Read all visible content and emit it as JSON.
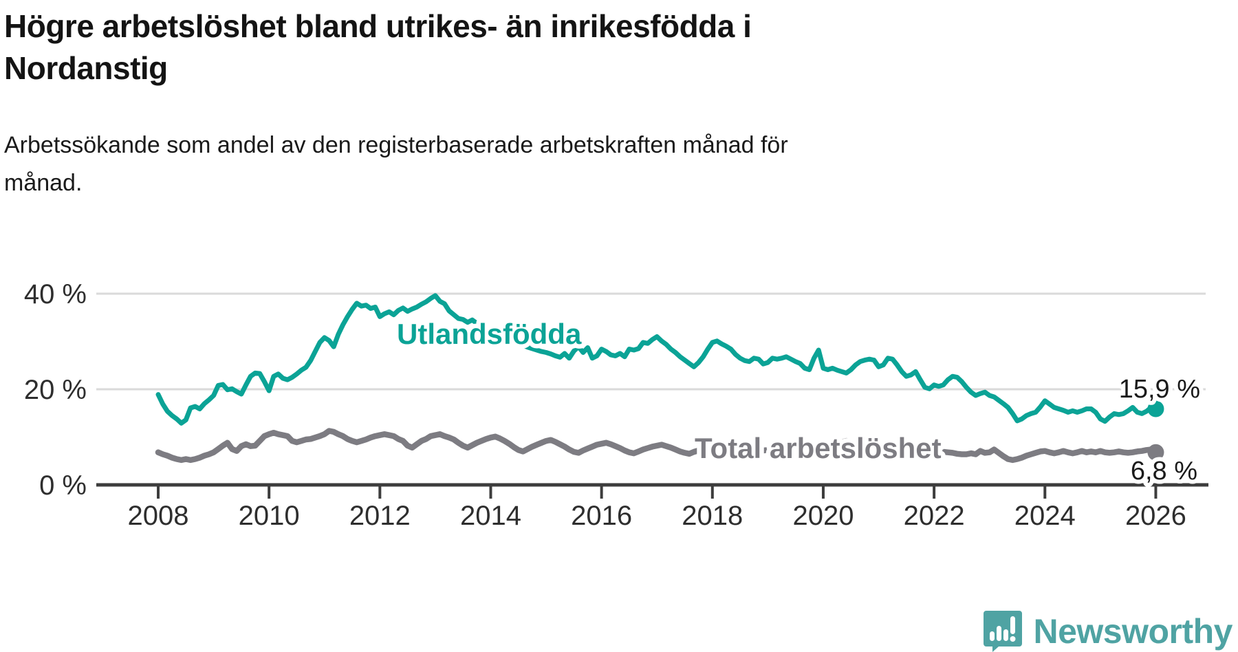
{
  "title": {
    "lines": [
      "Högre arbetslöshet bland utrikes- än inrikesfödda i",
      "Nordanstig"
    ]
  },
  "subtitle": {
    "lines": [
      "Arbetssökande som andel av den registerbaserade arbetskraften månad för",
      "månad."
    ]
  },
  "branding": {
    "name": "Newsworthy",
    "color": "#4FA3A3",
    "icon": "newsworthy-speech-bubble-chart-icon"
  },
  "chart_data": {
    "type": "line",
    "title": "Högre arbetslöshet bland utrikes- än inrikesfödda i Nordanstig",
    "subtitle": "Arbetssökande som andel av den registerbaserade arbetskraften månad för månad.",
    "x_unit": "month",
    "x_start": "2008-01",
    "x_end": "2026-01",
    "grid": "horizontal",
    "legend_position": "inline-labels",
    "x_axis": {
      "tick_years": [
        2008,
        2010,
        2012,
        2014,
        2016,
        2018,
        2020,
        2022,
        2024,
        2026
      ],
      "tick_labels": [
        "2008",
        "2010",
        "2012",
        "2014",
        "2016",
        "2018",
        "2020",
        "2022",
        "2024",
        "2026"
      ]
    },
    "y_axis": {
      "ticks": [
        0,
        20,
        40
      ],
      "tick_labels": [
        "0 %",
        "20 %",
        "40 %"
      ],
      "range": [
        0,
        43
      ]
    },
    "series": [
      {
        "name": "Utlandsfödda",
        "color": "#0BA396",
        "end_value": 15.9,
        "end_label": "15,9 %",
        "values": [
          18.9,
          16.9,
          15.4,
          14.5,
          13.8,
          12.9,
          13.6,
          16.1,
          16.4,
          15.9,
          17.0,
          17.8,
          18.7,
          20.8,
          21.0,
          19.9,
          20.1,
          19.5,
          19.0,
          20.9,
          22.7,
          23.4,
          23.3,
          21.6,
          19.7,
          22.7,
          23.2,
          22.3,
          22.0,
          22.5,
          23.2,
          24.0,
          24.6,
          26.0,
          27.9,
          29.8,
          30.8,
          30.2,
          28.9,
          31.5,
          33.5,
          35.2,
          36.7,
          38.0,
          37.4,
          37.6,
          36.9,
          37.2,
          35.2,
          35.8,
          36.2,
          35.6,
          36.5,
          37.0,
          36.3,
          36.8,
          37.2,
          37.8,
          38.3,
          39.0,
          39.6,
          38.4,
          37.9,
          36.4,
          35.6,
          34.8,
          34.6,
          34.0,
          34.5,
          33.8,
          33.2,
          32.8,
          32.4,
          32.0,
          31.5,
          31.0,
          30.5,
          30.0,
          29.6,
          29.2,
          28.8,
          28.5,
          28.2,
          27.9,
          27.7,
          27.4,
          27.0,
          26.7,
          27.5,
          26.5,
          28.0,
          28.9,
          27.7,
          28.7,
          26.5,
          27.0,
          28.4,
          27.9,
          27.2,
          27.0,
          27.5,
          26.8,
          28.4,
          28.2,
          28.5,
          29.8,
          29.6,
          30.4,
          31.0,
          30.1,
          29.4,
          28.4,
          27.7,
          26.8,
          26.1,
          25.4,
          24.7,
          25.6,
          26.8,
          28.4,
          29.8,
          30.1,
          29.5,
          29.0,
          28.4,
          27.3,
          26.5,
          26.0,
          25.8,
          26.5,
          26.3,
          25.3,
          25.6,
          26.5,
          26.3,
          26.5,
          26.8,
          26.3,
          25.8,
          25.4,
          24.4,
          24.1,
          26.5,
          28.2,
          24.4,
          24.1,
          24.4,
          24.0,
          23.7,
          23.4,
          24.1,
          25.1,
          25.8,
          26.1,
          26.3,
          26.1,
          24.7,
          25.1,
          26.5,
          26.3,
          25.1,
          23.7,
          22.7,
          23.0,
          23.7,
          22.0,
          20.4,
          20.1,
          20.9,
          20.6,
          20.9,
          22.0,
          22.7,
          22.5,
          21.6,
          20.4,
          19.4,
          18.7,
          19.1,
          19.4,
          18.7,
          18.4,
          17.7,
          17.0,
          16.2,
          14.9,
          13.4,
          13.8,
          14.5,
          14.9,
          15.2,
          16.3,
          17.6,
          16.9,
          16.2,
          15.9,
          15.6,
          15.2,
          15.5,
          15.2,
          15.5,
          15.9,
          15.9,
          15.2,
          13.8,
          13.3,
          14.2,
          14.9,
          14.7,
          14.9,
          15.5,
          16.2,
          15.2,
          14.9,
          15.4,
          16.2,
          15.9
        ]
      },
      {
        "name": "Total arbetslöshet",
        "color": "#7D7C82",
        "end_value": 6.8,
        "end_label": "6,8 %",
        "values": [
          6.8,
          6.4,
          6.1,
          5.7,
          5.4,
          5.2,
          5.4,
          5.2,
          5.4,
          5.7,
          6.1,
          6.4,
          6.8,
          7.5,
          8.2,
          8.8,
          7.5,
          7.1,
          8.1,
          8.5,
          8.1,
          8.2,
          9.2,
          10.2,
          10.6,
          10.9,
          10.6,
          10.4,
          10.2,
          9.2,
          8.9,
          9.2,
          9.5,
          9.6,
          9.9,
          10.2,
          10.6,
          11.3,
          11.1,
          10.6,
          10.2,
          9.6,
          9.2,
          8.9,
          9.2,
          9.5,
          9.9,
          10.2,
          10.4,
          10.6,
          10.4,
          10.2,
          9.6,
          9.2,
          8.2,
          7.8,
          8.5,
          9.2,
          9.6,
          10.2,
          10.4,
          10.6,
          10.2,
          9.9,
          9.5,
          8.8,
          8.2,
          7.8,
          8.3,
          8.8,
          9.2,
          9.6,
          9.9,
          10.1,
          9.7,
          9.2,
          8.6,
          7.9,
          7.3,
          7.0,
          7.5,
          8.0,
          8.4,
          8.8,
          9.2,
          9.4,
          9.0,
          8.5,
          8.0,
          7.4,
          6.9,
          6.7,
          7.2,
          7.6,
          8.0,
          8.4,
          8.6,
          8.8,
          8.5,
          8.1,
          7.7,
          7.2,
          6.8,
          6.6,
          7.0,
          7.4,
          7.7,
          8.0,
          8.2,
          8.4,
          8.1,
          7.8,
          7.4,
          7.0,
          6.7,
          6.5,
          6.9,
          7.2,
          7.5,
          7.7,
          7.8,
          7.9,
          7.6,
          7.3,
          7.0,
          6.6,
          6.3,
          6.2,
          6.5,
          6.8,
          7.0,
          7.2,
          7.3,
          7.4,
          7.2,
          6.9,
          6.6,
          6.3,
          6.1,
          6.0,
          6.3,
          6.5,
          6.7,
          6.9,
          7.1,
          7.3,
          7.8,
          8.5,
          8.9,
          9.2,
          9.0,
          8.8,
          8.6,
          8.4,
          8.2,
          8.1,
          8.2,
          8.3,
          8.1,
          7.9,
          7.6,
          7.3,
          7.0,
          6.8,
          6.9,
          7.0,
          7.1,
          7.2,
          7.1,
          7.0,
          6.9,
          6.8,
          6.7,
          6.5,
          6.4,
          6.4,
          6.6,
          6.4,
          7.1,
          6.7,
          6.8,
          7.4,
          6.7,
          6.0,
          5.4,
          5.2,
          5.4,
          5.7,
          6.1,
          6.4,
          6.7,
          7.0,
          7.1,
          6.8,
          6.6,
          6.8,
          7.1,
          6.8,
          6.6,
          6.8,
          7.1,
          6.8,
          7.0,
          6.8,
          7.1,
          6.8,
          6.7,
          6.8,
          7.0,
          6.8,
          6.7,
          6.8,
          7.0,
          7.1,
          7.3,
          7.4,
          6.8
        ]
      }
    ]
  }
}
